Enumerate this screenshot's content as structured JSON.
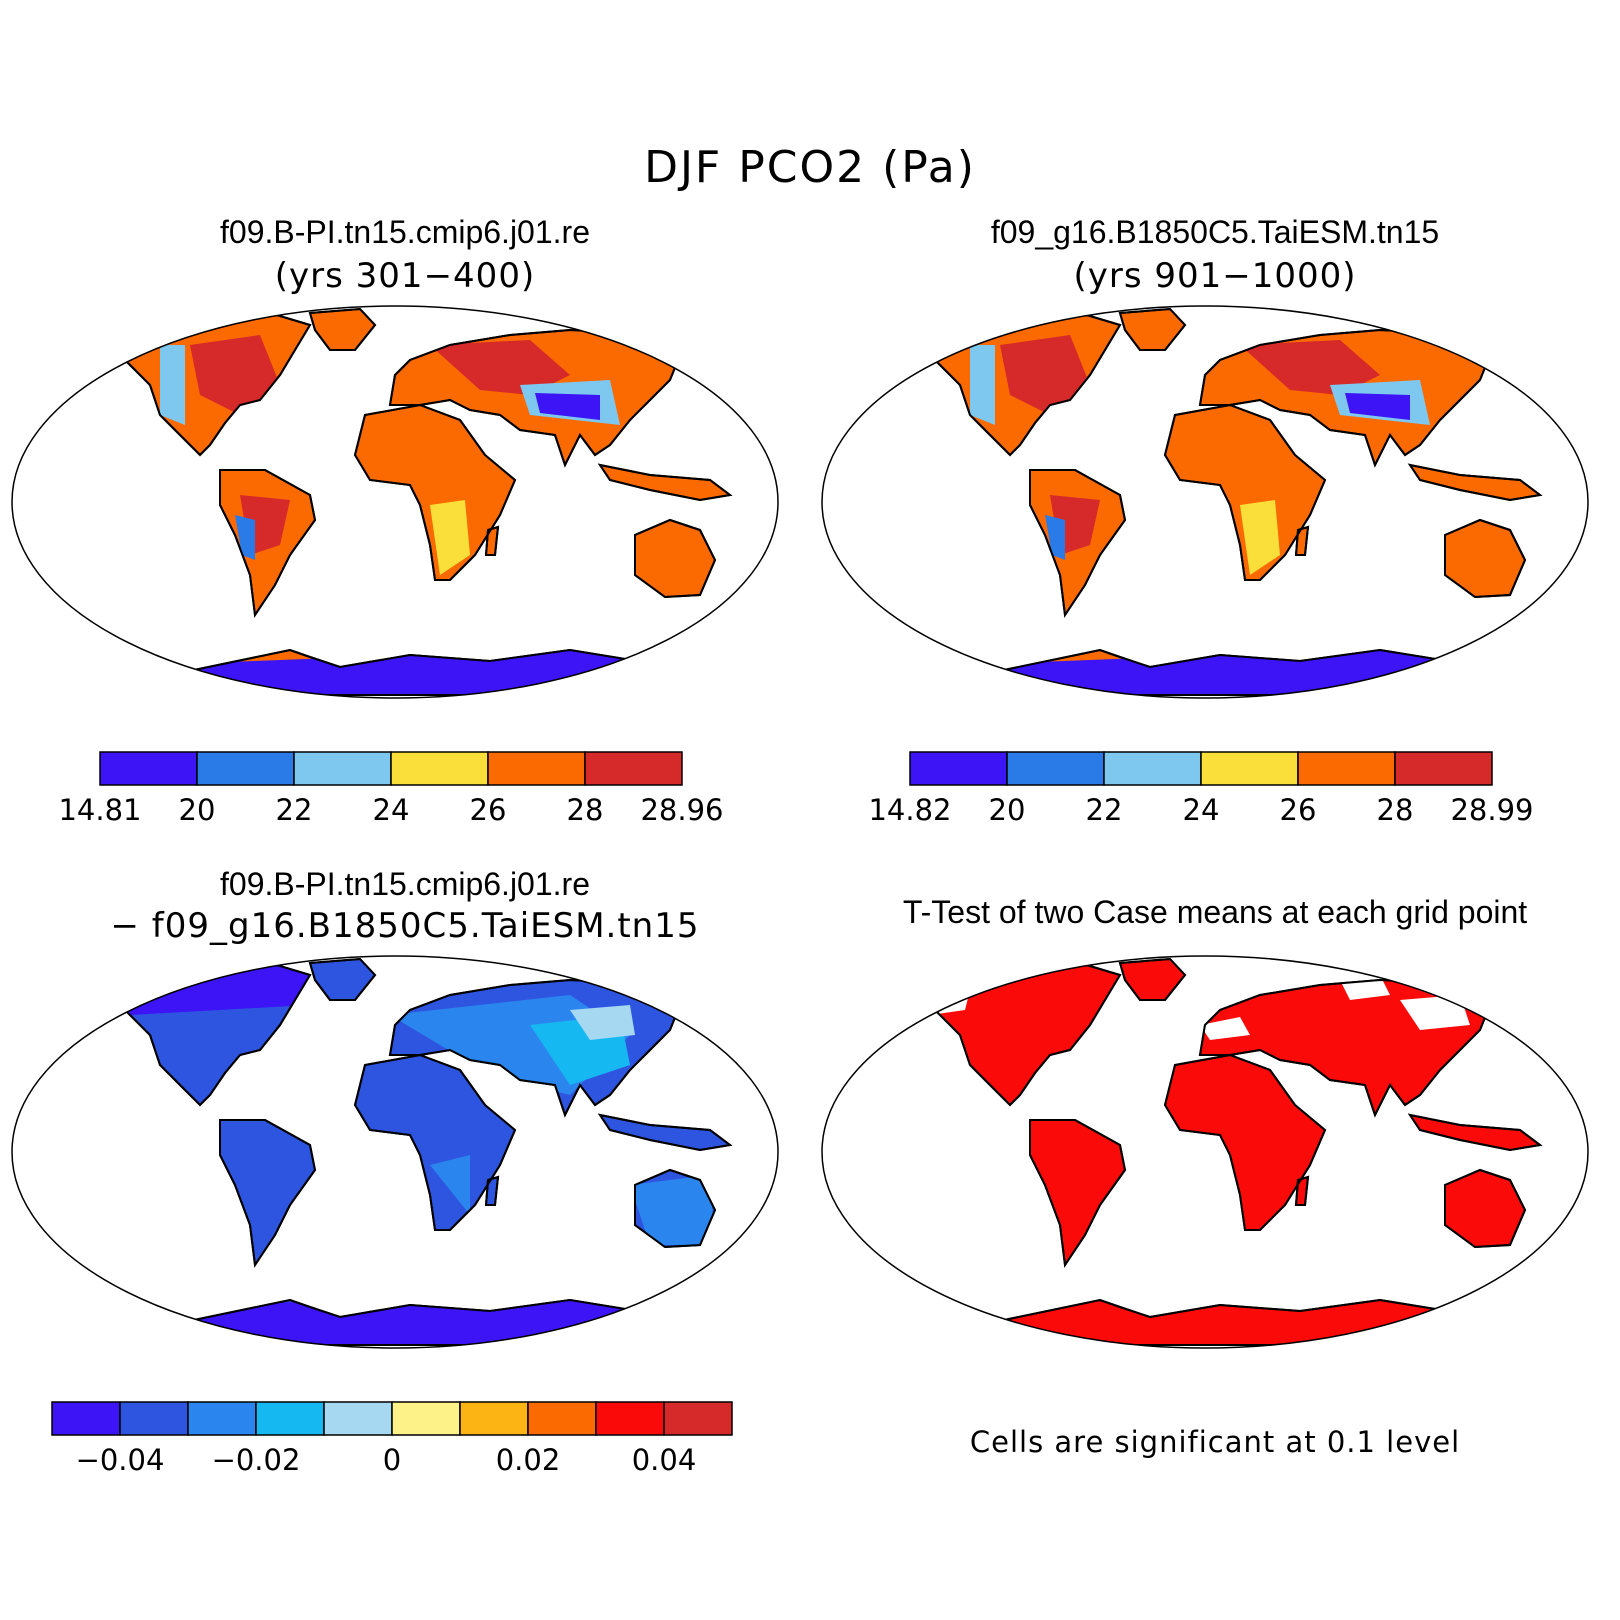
{
  "figure": {
    "title": "DJF PCO2 (Pa)"
  },
  "panels": [
    {
      "id": "case1",
      "title": "f09.B-PI.tn15.cmip6.j01.re",
      "subtitle": "(yrs 301−400)",
      "colorbar": {
        "colors": [
          "#3c14f5",
          "#2a7ae8",
          "#7ec8f0",
          "#fadf3a",
          "#fb6a00",
          "#d62a2a"
        ],
        "labels": [
          "14.81",
          "20",
          "22",
          "24",
          "26",
          "28",
          "28.96"
        ]
      }
    },
    {
      "id": "case2",
      "title": "f09_g16.B1850C5.TaiESM.tn15",
      "subtitle": "(yrs 901−1000)",
      "colorbar": {
        "colors": [
          "#3c14f5",
          "#2a7ae8",
          "#7ec8f0",
          "#fadf3a",
          "#fb6a00",
          "#d62a2a"
        ],
        "labels": [
          "14.82",
          "20",
          "22",
          "24",
          "26",
          "28",
          "28.99"
        ]
      }
    },
    {
      "id": "difference",
      "title": "f09.B-PI.tn15.cmip6.j01.re",
      "subtitle": "− f09_g16.B1850C5.TaiESM.tn15",
      "colorbar": {
        "colors": [
          "#3c14f5",
          "#2e55e0",
          "#2a86ee",
          "#16b8f2",
          "#a6d8f2",
          "#fdf288",
          "#fbb414",
          "#fb6a00",
          "#fb0a0a",
          "#d62a2a"
        ],
        "labels": [
          "−0.04",
          "−0.02",
          "0",
          "0.02",
          "0.04"
        ]
      }
    },
    {
      "id": "ttest",
      "title": "T-Test of two Case means at each grid point",
      "footnote": "Cells are significant at 0.1 level",
      "fill_color": "#fb0a0a"
    }
  ]
}
